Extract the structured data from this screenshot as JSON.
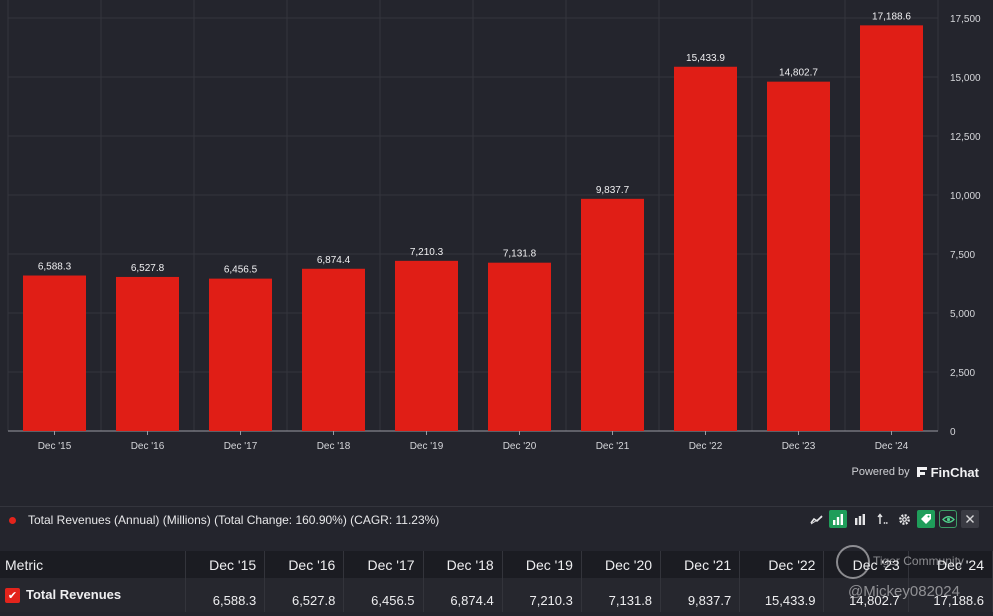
{
  "chart_data": {
    "type": "bar",
    "title": "Total Revenues (Annual) (Millions)",
    "categories": [
      "Dec '15",
      "Dec '16",
      "Dec '17",
      "Dec '18",
      "Dec '19",
      "Dec '20",
      "Dec '21",
      "Dec '22",
      "Dec '23",
      "Dec '24"
    ],
    "values": [
      6588.3,
      6527.8,
      6456.5,
      6874.4,
      7210.3,
      7131.8,
      9837.7,
      15433.9,
      14802.7,
      17188.6
    ],
    "value_labels": [
      "6,588.3",
      "6,527.8",
      "6,456.5",
      "6,874.4",
      "7,210.3",
      "7,131.8",
      "9,837.7",
      "15,433.9",
      "14,802.7",
      "17,188.6"
    ],
    "y_ticks": [
      0,
      2500,
      5000,
      7500,
      10000,
      12500,
      15000,
      17500
    ],
    "y_tick_labels": [
      "0",
      "2,500",
      "5,000",
      "7,500",
      "10,000",
      "12,500",
      "15,000",
      "17,500"
    ],
    "ylim": [
      0,
      17500
    ],
    "y_axis_side": "right",
    "grid": true,
    "bar_color": "#e01e16",
    "xlabel": "",
    "ylabel": ""
  },
  "branding": {
    "powered_by": "Powered by",
    "brand": "FinChat"
  },
  "legend": {
    "text": "Total Revenues (Annual) (Millions) (Total Change: 160.90%) (CAGR: 11.23%)",
    "color": "#e3241c"
  },
  "toolbar": {
    "icons": [
      "line-chart-icon",
      "bar-chart-icon",
      "stacked-bar-icon",
      "sort-icon",
      "gear-icon",
      "tag-icon",
      "eye-icon",
      "close-icon"
    ]
  },
  "table": {
    "metric_header": "Metric",
    "periods": [
      "Dec '15",
      "Dec '16",
      "Dec '17",
      "Dec '18",
      "Dec '19",
      "Dec '20",
      "Dec '21",
      "Dec '22",
      "Dec '23",
      "Dec '24"
    ],
    "rows": [
      {
        "name": "Total Revenues",
        "values": [
          "6,588.3",
          "6,527.8",
          "6,456.5",
          "6,874.4",
          "7,210.3",
          "7,131.8",
          "9,837.7",
          "15,433.9",
          "14,802.7",
          "17,188.6"
        ]
      }
    ]
  },
  "watermark": {
    "community": "Tiger Community",
    "user": "@Mickey082024"
  }
}
